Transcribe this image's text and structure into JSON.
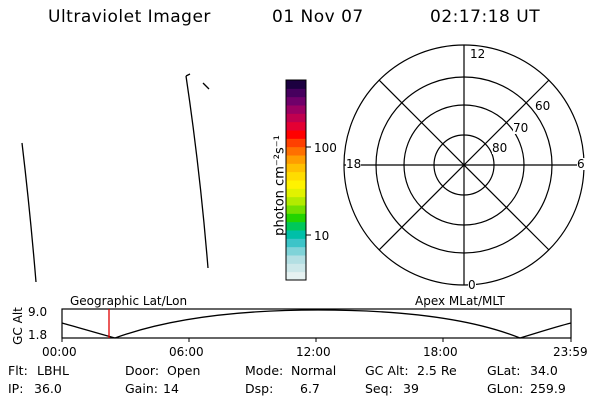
{
  "header": {
    "instrument": "Ultraviolet Imager",
    "date": "01 Nov 07",
    "time": "02:17:18 UT"
  },
  "colorbar": {
    "label": "photon cm⁻²s⁻¹",
    "ticks": [
      "100",
      "10"
    ],
    "colors": [
      "#e6f2f2",
      "#cde8ea",
      "#b3dfe3",
      "#7fd3d8",
      "#3cc4c8",
      "#00bfa8",
      "#00c85a",
      "#23d400",
      "#73e000",
      "#b3eb00",
      "#e2f200",
      "#fff300",
      "#ffdc00",
      "#ffc000",
      "#ff9d00",
      "#ff7000",
      "#ff4000",
      "#ff0000",
      "#e40033",
      "#c0004f",
      "#9b0062",
      "#70006a",
      "#46005e",
      "#1c0040"
    ]
  },
  "polar": {
    "mlt_labels": {
      "top": "12",
      "right": "6",
      "bottom": "0",
      "left": "18"
    },
    "lat_labels": [
      "60",
      "70",
      "80"
    ]
  },
  "timeline": {
    "y_axis_label": "GC Alt",
    "y_max": "9.0",
    "y_min": "1.8",
    "left_title": "Geographic Lat/Lon",
    "right_title": "Apex MLat/MLT",
    "time_ticks": [
      "00:00",
      "06:00",
      "12:00",
      "18:00",
      "23:59"
    ]
  },
  "info": {
    "filter_label": "Flt:",
    "filter_value": "LBHL",
    "ip_label": "IP:",
    "ip_value": "36.0",
    "door_label": "Door:",
    "door_value": "Open",
    "gain_label": "Gain:",
    "gain_value": "14",
    "mode_label": "Mode:",
    "mode_value": "Normal",
    "dsp_label": "Dsp:",
    "dsp_value": "6.7",
    "gcalt_label": "GC Alt:",
    "gcalt_value": "2.5 Re",
    "seq_label": "Seq:",
    "seq_value": "39",
    "glat_label": "GLat:",
    "glat_value": "34.0",
    "glon_label": "GLon:",
    "glon_value": "259.9"
  }
}
